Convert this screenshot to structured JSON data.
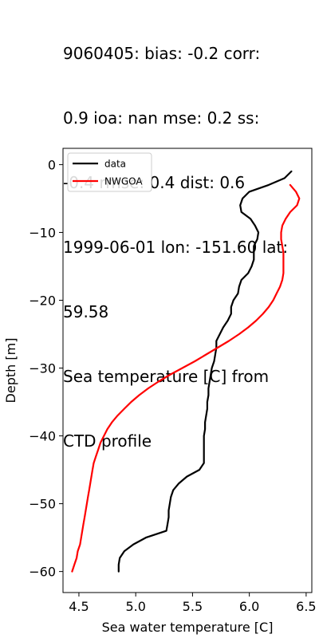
{
  "title_lines": [
    "9060405: bias: -0.2  corr:",
    "0.9  ioa: nan  mse: 0.2  ss:",
    "-0.4  rmse: 0.4  dist: 0.6",
    "1999-06-01 lon: -151.60 lat:",
    "59.58",
    "Sea temperature [C] from",
    "CTD profile"
  ],
  "chart_data": {
    "type": "line",
    "title": "9060405: bias: -0.2  corr: 0.9  ioa: nan  mse: 0.2  ss: -0.4  rmse: 0.4  dist: 0.6 1999-06-01 lon: -151.60 lat: 59.58 Sea temperature [C] from CTD profile",
    "xlabel": "Sea water temperature [C]",
    "ylabel": "Depth [m]",
    "xlim": [
      4.36,
      6.55
    ],
    "ylim": [
      -63.1,
      2.4
    ],
    "xticks": [
      4.5,
      5.0,
      5.5,
      6.0,
      6.5
    ],
    "xtick_labels": [
      "4.5",
      "5.0",
      "5.5",
      "6.0",
      "6.5"
    ],
    "yticks": [
      0,
      -10,
      -20,
      -30,
      -40,
      -50,
      -60
    ],
    "ytick_labels": [
      "0",
      "−10",
      "−20",
      "−30",
      "−40",
      "−50",
      "−60"
    ],
    "grid": false,
    "legend_position": "upper-left",
    "series": [
      {
        "name": "data",
        "color": "#000000",
        "points": [
          [
            6.37,
            -1.0
          ],
          [
            6.31,
            -2.0
          ],
          [
            6.17,
            -3.0
          ],
          [
            6.0,
            -4.0
          ],
          [
            5.94,
            -5.0
          ],
          [
            5.92,
            -6.0
          ],
          [
            5.93,
            -7.0
          ],
          [
            6.01,
            -8.0
          ],
          [
            6.05,
            -9.0
          ],
          [
            6.08,
            -10.0
          ],
          [
            6.07,
            -11.0
          ],
          [
            6.04,
            -12.0
          ],
          [
            6.04,
            -13.0
          ],
          [
            6.04,
            -14.0
          ],
          [
            6.02,
            -15.0
          ],
          [
            5.99,
            -16.0
          ],
          [
            5.93,
            -17.0
          ],
          [
            5.91,
            -18.0
          ],
          [
            5.9,
            -19.0
          ],
          [
            5.86,
            -20.0
          ],
          [
            5.84,
            -21.0
          ],
          [
            5.84,
            -22.0
          ],
          [
            5.81,
            -23.0
          ],
          [
            5.77,
            -24.0
          ],
          [
            5.74,
            -25.0
          ],
          [
            5.71,
            -26.0
          ],
          [
            5.71,
            -27.0
          ],
          [
            5.7,
            -28.0
          ],
          [
            5.69,
            -29.0
          ],
          [
            5.67,
            -30.0
          ],
          [
            5.66,
            -31.0
          ],
          [
            5.65,
            -32.0
          ],
          [
            5.64,
            -33.0
          ],
          [
            5.64,
            -34.0
          ],
          [
            5.63,
            -35.0
          ],
          [
            5.63,
            -36.0
          ],
          [
            5.62,
            -37.0
          ],
          [
            5.61,
            -38.0
          ],
          [
            5.61,
            -39.0
          ],
          [
            5.6,
            -40.0
          ],
          [
            5.6,
            -41.0
          ],
          [
            5.6,
            -42.0
          ],
          [
            5.6,
            -43.0
          ],
          [
            5.6,
            -44.0
          ],
          [
            5.56,
            -45.0
          ],
          [
            5.45,
            -46.0
          ],
          [
            5.38,
            -47.0
          ],
          [
            5.33,
            -48.0
          ],
          [
            5.31,
            -49.0
          ],
          [
            5.3,
            -50.0
          ],
          [
            5.29,
            -51.0
          ],
          [
            5.29,
            -52.0
          ],
          [
            5.28,
            -53.0
          ],
          [
            5.27,
            -54.0
          ],
          [
            5.09,
            -55.0
          ],
          [
            4.98,
            -56.0
          ],
          [
            4.9,
            -57.0
          ],
          [
            4.86,
            -58.0
          ],
          [
            4.85,
            -59.0
          ],
          [
            4.85,
            -60.0
          ]
        ]
      },
      {
        "name": "NWGOA",
        "color": "#ff0000",
        "points": [
          [
            6.36,
            -3.0
          ],
          [
            6.41,
            -4.0
          ],
          [
            6.44,
            -5.0
          ],
          [
            6.42,
            -6.0
          ],
          [
            6.36,
            -7.0
          ],
          [
            6.32,
            -8.0
          ],
          [
            6.29,
            -9.0
          ],
          [
            6.28,
            -10.0
          ],
          [
            6.28,
            -11.0
          ],
          [
            6.29,
            -12.0
          ],
          [
            6.3,
            -13.0
          ],
          [
            6.3,
            -14.0
          ],
          [
            6.3,
            -15.0
          ],
          [
            6.3,
            -16.0
          ],
          [
            6.29,
            -17.0
          ],
          [
            6.27,
            -18.0
          ],
          [
            6.24,
            -19.0
          ],
          [
            6.21,
            -20.0
          ],
          [
            6.17,
            -21.0
          ],
          [
            6.12,
            -22.0
          ],
          [
            6.06,
            -23.0
          ],
          [
            5.99,
            -24.0
          ],
          [
            5.91,
            -25.0
          ],
          [
            5.82,
            -26.0
          ],
          [
            5.72,
            -27.0
          ],
          [
            5.62,
            -28.0
          ],
          [
            5.52,
            -29.0
          ],
          [
            5.41,
            -30.0
          ],
          [
            5.3,
            -31.0
          ],
          [
            5.2,
            -32.0
          ],
          [
            5.11,
            -33.0
          ],
          [
            5.03,
            -34.0
          ],
          [
            4.96,
            -35.0
          ],
          [
            4.9,
            -36.0
          ],
          [
            4.84,
            -37.0
          ],
          [
            4.79,
            -38.0
          ],
          [
            4.75,
            -39.0
          ],
          [
            4.72,
            -40.0
          ],
          [
            4.69,
            -41.0
          ],
          [
            4.67,
            -42.0
          ],
          [
            4.65,
            -43.0
          ],
          [
            4.63,
            -44.0
          ],
          [
            4.62,
            -45.0
          ],
          [
            4.61,
            -46.0
          ],
          [
            4.6,
            -47.0
          ],
          [
            4.59,
            -48.0
          ],
          [
            4.58,
            -49.0
          ],
          [
            4.57,
            -50.0
          ],
          [
            4.56,
            -51.0
          ],
          [
            4.55,
            -52.0
          ],
          [
            4.54,
            -53.0
          ],
          [
            4.53,
            -54.0
          ],
          [
            4.52,
            -55.0
          ],
          [
            4.51,
            -56.0
          ],
          [
            4.49,
            -57.0
          ],
          [
            4.48,
            -58.0
          ],
          [
            4.46,
            -59.0
          ],
          [
            4.44,
            -60.0
          ]
        ]
      }
    ]
  }
}
